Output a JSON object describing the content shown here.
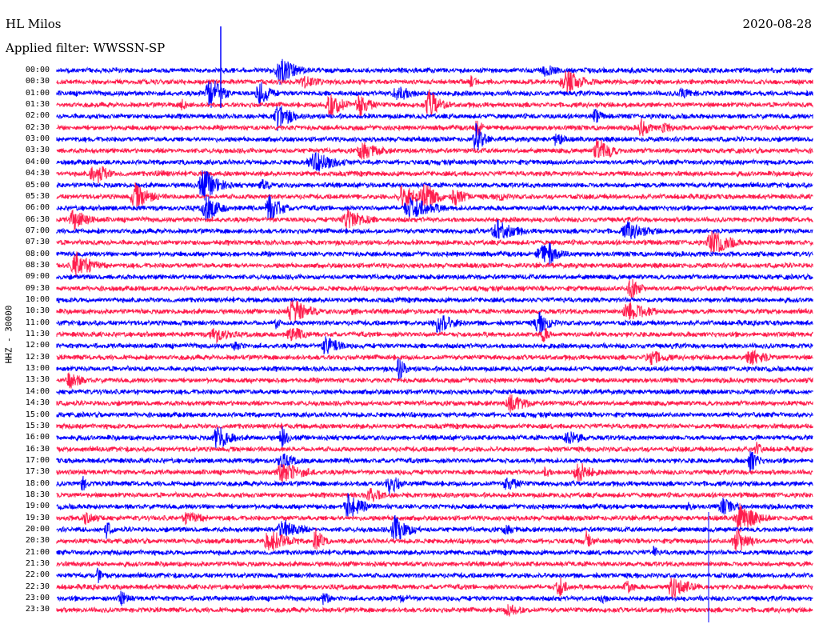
{
  "header": {
    "station": "HL Milos",
    "filter": "Applied filter: WWSSN-SP",
    "date": "2020-08-28"
  },
  "channel_label": "HHZ - 30000",
  "colors": {
    "even_row": "#0000ff",
    "odd_row": "#ff1e4e",
    "text": "#000000"
  },
  "chart_data": {
    "type": "line",
    "title": "",
    "xlabel": "",
    "ylabel": "HHZ - 30000",
    "rows": [
      "00:00",
      "00:30",
      "01:00",
      "01:30",
      "02:00",
      "02:30",
      "03:00",
      "03:30",
      "04:00",
      "04:30",
      "05:00",
      "05:30",
      "06:00",
      "06:30",
      "07:00",
      "07:30",
      "08:00",
      "08:30",
      "09:00",
      "09:30",
      "10:00",
      "10:30",
      "11:00",
      "11:30",
      "12:00",
      "12:30",
      "13:00",
      "13:30",
      "14:00",
      "14:30",
      "15:00",
      "15:30",
      "16:00",
      "16:30",
      "17:00",
      "17:30",
      "18:00",
      "18:30",
      "19:00",
      "19:30",
      "20:00",
      "20:30",
      "21:00",
      "21:30",
      "22:00",
      "22:30",
      "23:00",
      "23:30"
    ],
    "row_minutes": 30,
    "grid": false,
    "series_colors_alternate": [
      "#0000ff",
      "#ff1e4e"
    ]
  }
}
